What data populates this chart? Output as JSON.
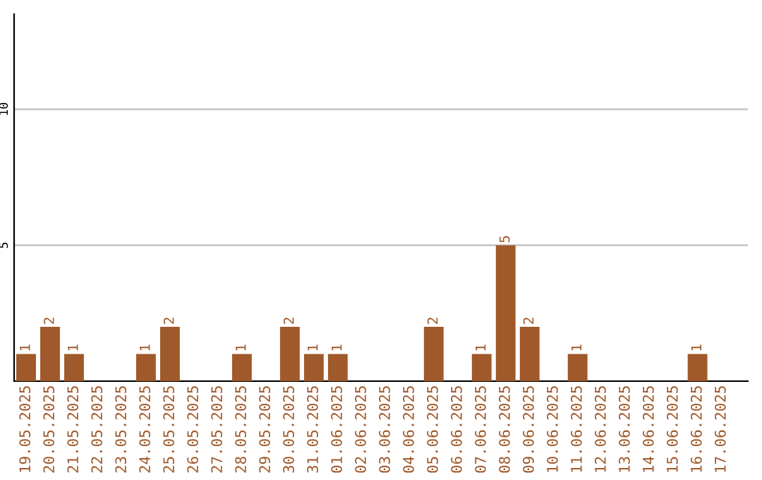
{
  "chart_data": {
    "type": "bar",
    "categories": [
      "19.05.2025",
      "20.05.2025",
      "21.05.2025",
      "22.05.2025",
      "23.05.2025",
      "24.05.2025",
      "25.05.2025",
      "26.05.2025",
      "27.05.2025",
      "28.05.2025",
      "29.05.2025",
      "30.05.2025",
      "31.05.2025",
      "01.06.2025",
      "02.06.2025",
      "03.06.2025",
      "04.06.2025",
      "05.06.2025",
      "06.06.2025",
      "07.06.2025",
      "08.06.2025",
      "09.06.2025",
      "10.06.2025",
      "11.06.2025",
      "12.06.2025",
      "13.06.2025",
      "14.06.2025",
      "15.06.2025",
      "16.06.2025",
      "17.06.2025"
    ],
    "values": [
      1,
      2,
      1,
      0,
      0,
      1,
      2,
      0,
      0,
      1,
      0,
      2,
      1,
      1,
      0,
      0,
      0,
      2,
      0,
      1,
      5,
      2,
      0,
      1,
      0,
      0,
      0,
      0,
      1,
      0
    ],
    "value_labels": [
      "1",
      "2",
      "1",
      null,
      null,
      "1",
      "2",
      null,
      null,
      "1",
      null,
      "2",
      "1",
      "1",
      null,
      null,
      null,
      "2",
      null,
      "1",
      "5",
      "2",
      null,
      "1",
      null,
      null,
      null,
      null,
      "1",
      null
    ],
    "color": "#a0592a",
    "ylim": [
      0,
      13.5
    ],
    "yticks": [
      {
        "value": 0,
        "label": null
      },
      5,
      10
    ],
    "grid": "y",
    "legend": false
  }
}
